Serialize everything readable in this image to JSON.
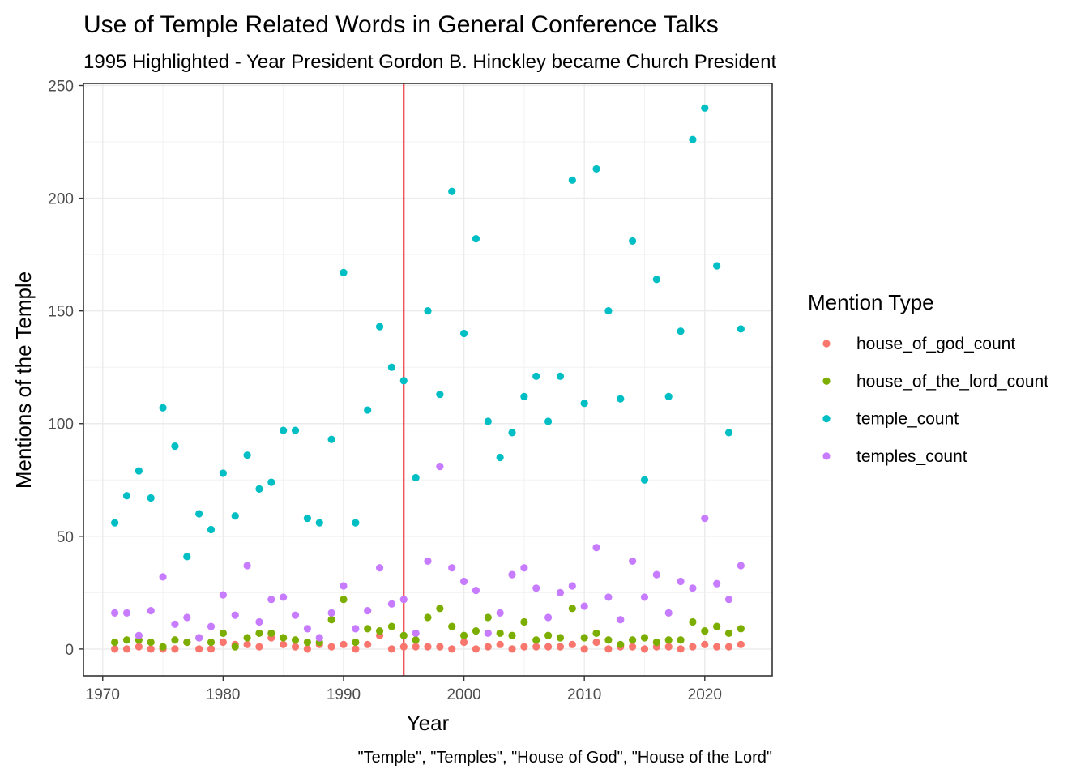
{
  "chart_data": {
    "type": "scatter",
    "title": "Use of Temple Related Words in General Conference Talks",
    "subtitle": "1995 Highlighted - Year President Gordon B. Hinckley became Church President",
    "xlabel": "Year",
    "ylabel": "Mentions of the Temple",
    "caption": "\"Temple\", \"Temples\", \"House of God\", \"House of the Lord\"",
    "xlim": [
      1968.4,
      2025.6
    ],
    "ylim": [
      -11.9,
      250.9
    ],
    "x_ticks": [
      1970,
      1980,
      1990,
      2000,
      2010,
      2020
    ],
    "y_ticks": [
      0,
      50,
      100,
      150,
      200,
      250
    ],
    "grid": true,
    "legend": {
      "title": "Mention Type",
      "position": "right"
    },
    "reference_line": {
      "x": 1995,
      "color": "#e8141a"
    },
    "x": [
      1971,
      1972,
      1973,
      1974,
      1975,
      1976,
      1977,
      1978,
      1979,
      1980,
      1981,
      1982,
      1983,
      1984,
      1985,
      1986,
      1987,
      1988,
      1989,
      1990,
      1991,
      1992,
      1993,
      1994,
      1995,
      1996,
      1997,
      1998,
      1999,
      2000,
      2001,
      2002,
      2003,
      2004,
      2005,
      2006,
      2007,
      2008,
      2009,
      2010,
      2011,
      2012,
      2013,
      2014,
      2015,
      2016,
      2017,
      2018,
      2019,
      2020,
      2021,
      2022,
      2023
    ],
    "series": [
      {
        "name": "house_of_god_count",
        "color": "#F8766D",
        "values": [
          0,
          0,
          1,
          0,
          0,
          0,
          3,
          0,
          0,
          3,
          2,
          2,
          1,
          5,
          2,
          1,
          0,
          2,
          1,
          2,
          0,
          2,
          6,
          0,
          1,
          1,
          1,
          1,
          0,
          3,
          0,
          1,
          2,
          0,
          1,
          1,
          1,
          1,
          2,
          0,
          3,
          0,
          1,
          1,
          0,
          1,
          1,
          0,
          1,
          2,
          1,
          1,
          2
        ]
      },
      {
        "name": "house_of_the_lord_count",
        "color": "#7CAE00",
        "values": [
          3,
          4,
          4,
          3,
          1,
          4,
          3,
          5,
          3,
          7,
          1,
          5,
          7,
          7,
          5,
          4,
          3,
          3,
          13,
          22,
          3,
          9,
          8,
          10,
          6,
          4,
          14,
          18,
          10,
          6,
          8,
          14,
          7,
          6,
          12,
          4,
          6,
          5,
          18,
          5,
          7,
          4,
          2,
          4,
          5,
          3,
          4,
          4,
          12,
          8,
          10,
          7,
          9
        ]
      },
      {
        "name": "temple_count",
        "color": "#00BFC4",
        "values": [
          56,
          68,
          79,
          67,
          107,
          90,
          41,
          60,
          53,
          78,
          59,
          86,
          71,
          74,
          97,
          97,
          58,
          56,
          93,
          167,
          56,
          106,
          143,
          125,
          119,
          76,
          150,
          113,
          203,
          140,
          182,
          101,
          85,
          96,
          112,
          121,
          101,
          121,
          208,
          109,
          213,
          150,
          111,
          181,
          75,
          164,
          112,
          141,
          226,
          240,
          170,
          96,
          142
        ]
      },
      {
        "name": "temples_count",
        "color": "#C77CFF",
        "values": [
          16,
          16,
          6,
          17,
          32,
          11,
          14,
          5,
          10,
          24,
          15,
          37,
          12,
          22,
          23,
          15,
          9,
          5,
          16,
          28,
          9,
          17,
          36,
          20,
          22,
          7,
          39,
          81,
          36,
          30,
          26,
          7,
          16,
          33,
          36,
          27,
          14,
          25,
          28,
          19,
          45,
          23,
          13,
          39,
          23,
          33,
          16,
          30,
          27,
          58,
          29,
          22,
          37
        ]
      }
    ]
  }
}
